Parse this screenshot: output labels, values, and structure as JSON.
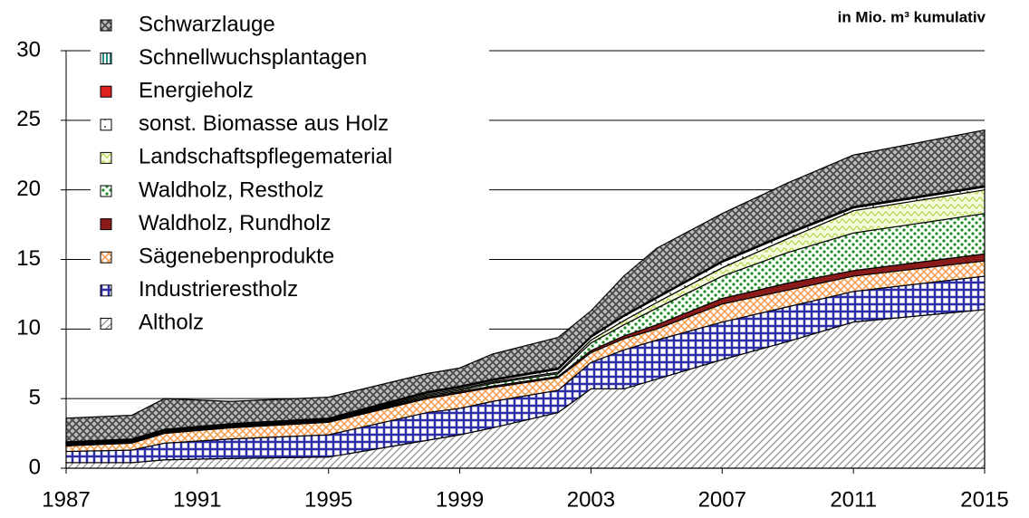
{
  "chart_data": {
    "type": "stacked-area",
    "subtitle": "in Mio. m³ kumulativ",
    "x": [
      1987,
      1989,
      1990,
      1992,
      1995,
      1998,
      1999,
      2000,
      2002,
      2003,
      2004,
      2005,
      2007,
      2009,
      2011,
      2015
    ],
    "xlim": [
      1987,
      2015
    ],
    "xticks": [
      1987,
      1991,
      1995,
      1999,
      2003,
      2007,
      2011,
      2015
    ],
    "ylim": [
      0,
      30
    ],
    "yticks": [
      0,
      5,
      10,
      15,
      20,
      25,
      30
    ],
    "grid": true,
    "legend": "top-left",
    "series": [
      {
        "name": "Altholz",
        "color": "#8c8c8c",
        "values": [
          0.4,
          0.4,
          0.6,
          0.7,
          0.8,
          2.0,
          2.4,
          2.9,
          4.0,
          5.7,
          5.7,
          6.4,
          7.8,
          9.1,
          10.5,
          11.4
        ]
      },
      {
        "name": "Industrierestholz",
        "color": "#2e2ea8",
        "values": [
          0.8,
          0.9,
          1.2,
          1.4,
          1.6,
          2.0,
          1.9,
          1.9,
          1.6,
          1.9,
          2.8,
          2.8,
          2.7,
          2.5,
          2.2,
          2.4
        ]
      },
      {
        "name": "Sägenebenprodukte",
        "color": "#f5a050",
        "values": [
          0.4,
          0.5,
          0.7,
          0.8,
          0.9,
          1.0,
          1.1,
          1.0,
          0.9,
          0.7,
          0.8,
          0.8,
          1.3,
          1.2,
          1.1,
          1.1
        ]
      },
      {
        "name": "Waldholz, Rundholz",
        "color": "#8b1a1a",
        "values": [
          0.05,
          0.05,
          0.05,
          0.05,
          0.05,
          0.1,
          0.1,
          0.1,
          0.1,
          0.15,
          0.2,
          0.3,
          0.4,
          0.5,
          0.4,
          0.5
        ]
      },
      {
        "name": "Waldholz, Restholz",
        "color": "#1e8c1e",
        "values": [
          0.05,
          0.05,
          0.05,
          0.05,
          0.05,
          0.1,
          0.1,
          0.2,
          0.2,
          0.55,
          0.8,
          1.2,
          1.6,
          2.2,
          2.7,
          2.9
        ]
      },
      {
        "name": "Landschaftspflegematerial",
        "color": "#b8d84a",
        "values": [
          0.05,
          0.05,
          0.05,
          0.05,
          0.05,
          0.1,
          0.1,
          0.1,
          0.1,
          0.2,
          0.3,
          0.4,
          0.6,
          1.0,
          1.6,
          1.7
        ]
      },
      {
        "name": "sonst. Biomasse aus Holz",
        "color": "#444444",
        "values": [
          0.05,
          0.05,
          0.05,
          0.05,
          0.05,
          0.1,
          0.1,
          0.1,
          0.2,
          0.2,
          0.3,
          0.3,
          0.4,
          0.3,
          0.2,
          0.2
        ]
      },
      {
        "name": "Energieholz",
        "color": "#e02020",
        "values": [
          0.05,
          0.05,
          0.05,
          0.05,
          0.05,
          0.05,
          0.05,
          0.05,
          0.05,
          0.05,
          0.05,
          0.05,
          0.05,
          0.05,
          0.05,
          0.05
        ]
      },
      {
        "name": "Schnellwuchsplantagen",
        "color": "#2a8a8a",
        "values": [
          0.05,
          0.05,
          0.05,
          0.05,
          0.05,
          0.05,
          0.05,
          0.05,
          0.05,
          0.05,
          0.05,
          0.05,
          0.05,
          0.05,
          0.05,
          0.05
        ]
      },
      {
        "name": "Schwarzlauge",
        "color": "#4a4a4a",
        "values": [
          1.7,
          1.7,
          2.2,
          1.6,
          1.5,
          1.3,
          1.3,
          1.8,
          2.2,
          1.8,
          2.8,
          3.5,
          3.4,
          3.6,
          3.7,
          4.0
        ]
      }
    ]
  }
}
